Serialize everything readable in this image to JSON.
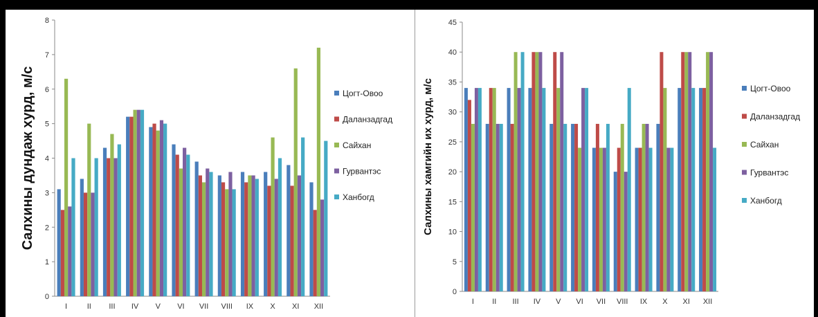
{
  "chart_data": [
    {
      "type": "bar",
      "ylabel": "Салхины дундаж хурд, м/с",
      "ylim": [
        0,
        8
      ],
      "yticks": [
        0,
        1,
        2,
        3,
        4,
        5,
        6,
        7,
        8
      ],
      "categories": [
        "I",
        "II",
        "III",
        "IV",
        "V",
        "VI",
        "VII",
        "VIII",
        "IX",
        "X",
        "XI",
        "XII"
      ],
      "legend_position": "right",
      "grid": false,
      "series": [
        {
          "name": "Цогт-Овоо",
          "color": "#4a7ebb",
          "values": [
            3.1,
            3.4,
            4.3,
            5.2,
            4.9,
            4.4,
            3.9,
            3.5,
            3.6,
            3.6,
            3.8,
            3.3
          ]
        },
        {
          "name": "Даланзадгад",
          "color": "#be4b48",
          "values": [
            2.5,
            3.0,
            4.0,
            5.2,
            5.0,
            4.1,
            3.5,
            3.3,
            3.3,
            3.2,
            3.2,
            2.5
          ]
        },
        {
          "name": "Сайхан",
          "color": "#98b954",
          "values": [
            6.3,
            5.0,
            4.7,
            5.4,
            4.8,
            3.7,
            3.3,
            3.1,
            3.5,
            4.6,
            6.6,
            7.2
          ]
        },
        {
          "name": "Гурвантэс",
          "color": "#7d60a0",
          "values": [
            2.6,
            3.0,
            4.0,
            5.4,
            5.1,
            4.3,
            3.7,
            3.6,
            3.5,
            3.4,
            3.5,
            2.8
          ]
        },
        {
          "name": "Ханбогд",
          "color": "#46aac5",
          "values": [
            4.0,
            4.0,
            4.4,
            5.4,
            5.0,
            4.1,
            3.6,
            3.1,
            3.4,
            4.0,
            4.6,
            4.5
          ]
        }
      ]
    },
    {
      "type": "bar",
      "ylabel": "Салхины хамгийн их хурд, м/с",
      "ylim": [
        0,
        45
      ],
      "yticks": [
        0,
        5,
        10,
        15,
        20,
        25,
        30,
        35,
        40,
        45
      ],
      "categories": [
        "I",
        "II",
        "III",
        "IV",
        "V",
        "VI",
        "VII",
        "VIII",
        "IX",
        "X",
        "XI",
        "XII"
      ],
      "legend_position": "right",
      "grid": false,
      "series": [
        {
          "name": "Цогт-Овоо",
          "color": "#4a7ebb",
          "values": [
            34,
            28,
            34,
            34,
            28,
            28,
            24,
            20,
            24,
            28,
            34,
            34
          ]
        },
        {
          "name": "Даланзадгад",
          "color": "#be4b48",
          "values": [
            32,
            34,
            28,
            40,
            40,
            28,
            28,
            24,
            24,
            40,
            40,
            34
          ]
        },
        {
          "name": "Сайхан",
          "color": "#98b954",
          "values": [
            28,
            34,
            40,
            40,
            34,
            24,
            24,
            28,
            28,
            34,
            40,
            40
          ]
        },
        {
          "name": "Гурвантэс",
          "color": "#7d60a0",
          "values": [
            34,
            28,
            34,
            40,
            40,
            34,
            24,
            20,
            28,
            24,
            40,
            40
          ]
        },
        {
          "name": "Ханбогд",
          "color": "#46aac5",
          "values": [
            34,
            28,
            40,
            34,
            28,
            34,
            28,
            34,
            24,
            24,
            34,
            24
          ]
        }
      ]
    }
  ]
}
